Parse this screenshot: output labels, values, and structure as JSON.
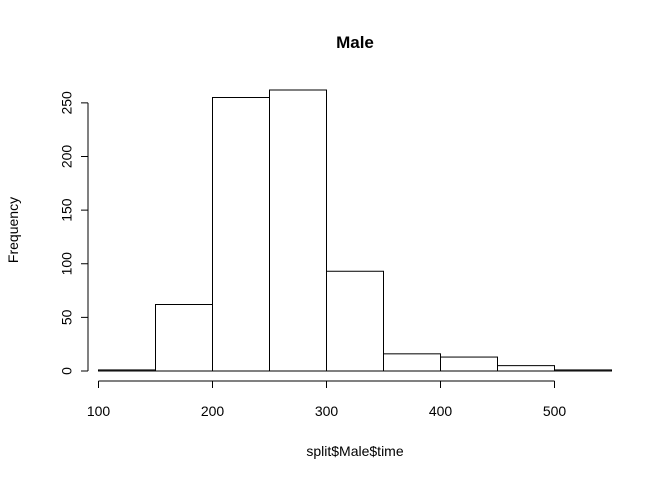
{
  "chart_data": {
    "type": "bar",
    "subtype": "histogram",
    "title": "Male",
    "xlabel": "split$Male$time",
    "ylabel": "Frequency",
    "bins": [
      {
        "from": 100,
        "to": 150,
        "count": 1
      },
      {
        "from": 150,
        "to": 200,
        "count": 62
      },
      {
        "from": 200,
        "to": 250,
        "count": 255
      },
      {
        "from": 250,
        "to": 300,
        "count": 262
      },
      {
        "from": 300,
        "to": 350,
        "count": 93
      },
      {
        "from": 350,
        "to": 400,
        "count": 16
      },
      {
        "from": 400,
        "to": 450,
        "count": 13
      },
      {
        "from": 450,
        "to": 500,
        "count": 5
      },
      {
        "from": 500,
        "to": 550,
        "count": 1
      }
    ],
    "xlim": [
      100,
      550
    ],
    "ylim": [
      0,
      262
    ],
    "x_ticks": [
      "100",
      "200",
      "300",
      "400",
      "500"
    ],
    "y_ticks": [
      "0",
      "50",
      "100",
      "150",
      "200",
      "250"
    ],
    "grid": false,
    "colors": {
      "bar_fill": "#ffffff",
      "bar_stroke": "#000000"
    }
  }
}
